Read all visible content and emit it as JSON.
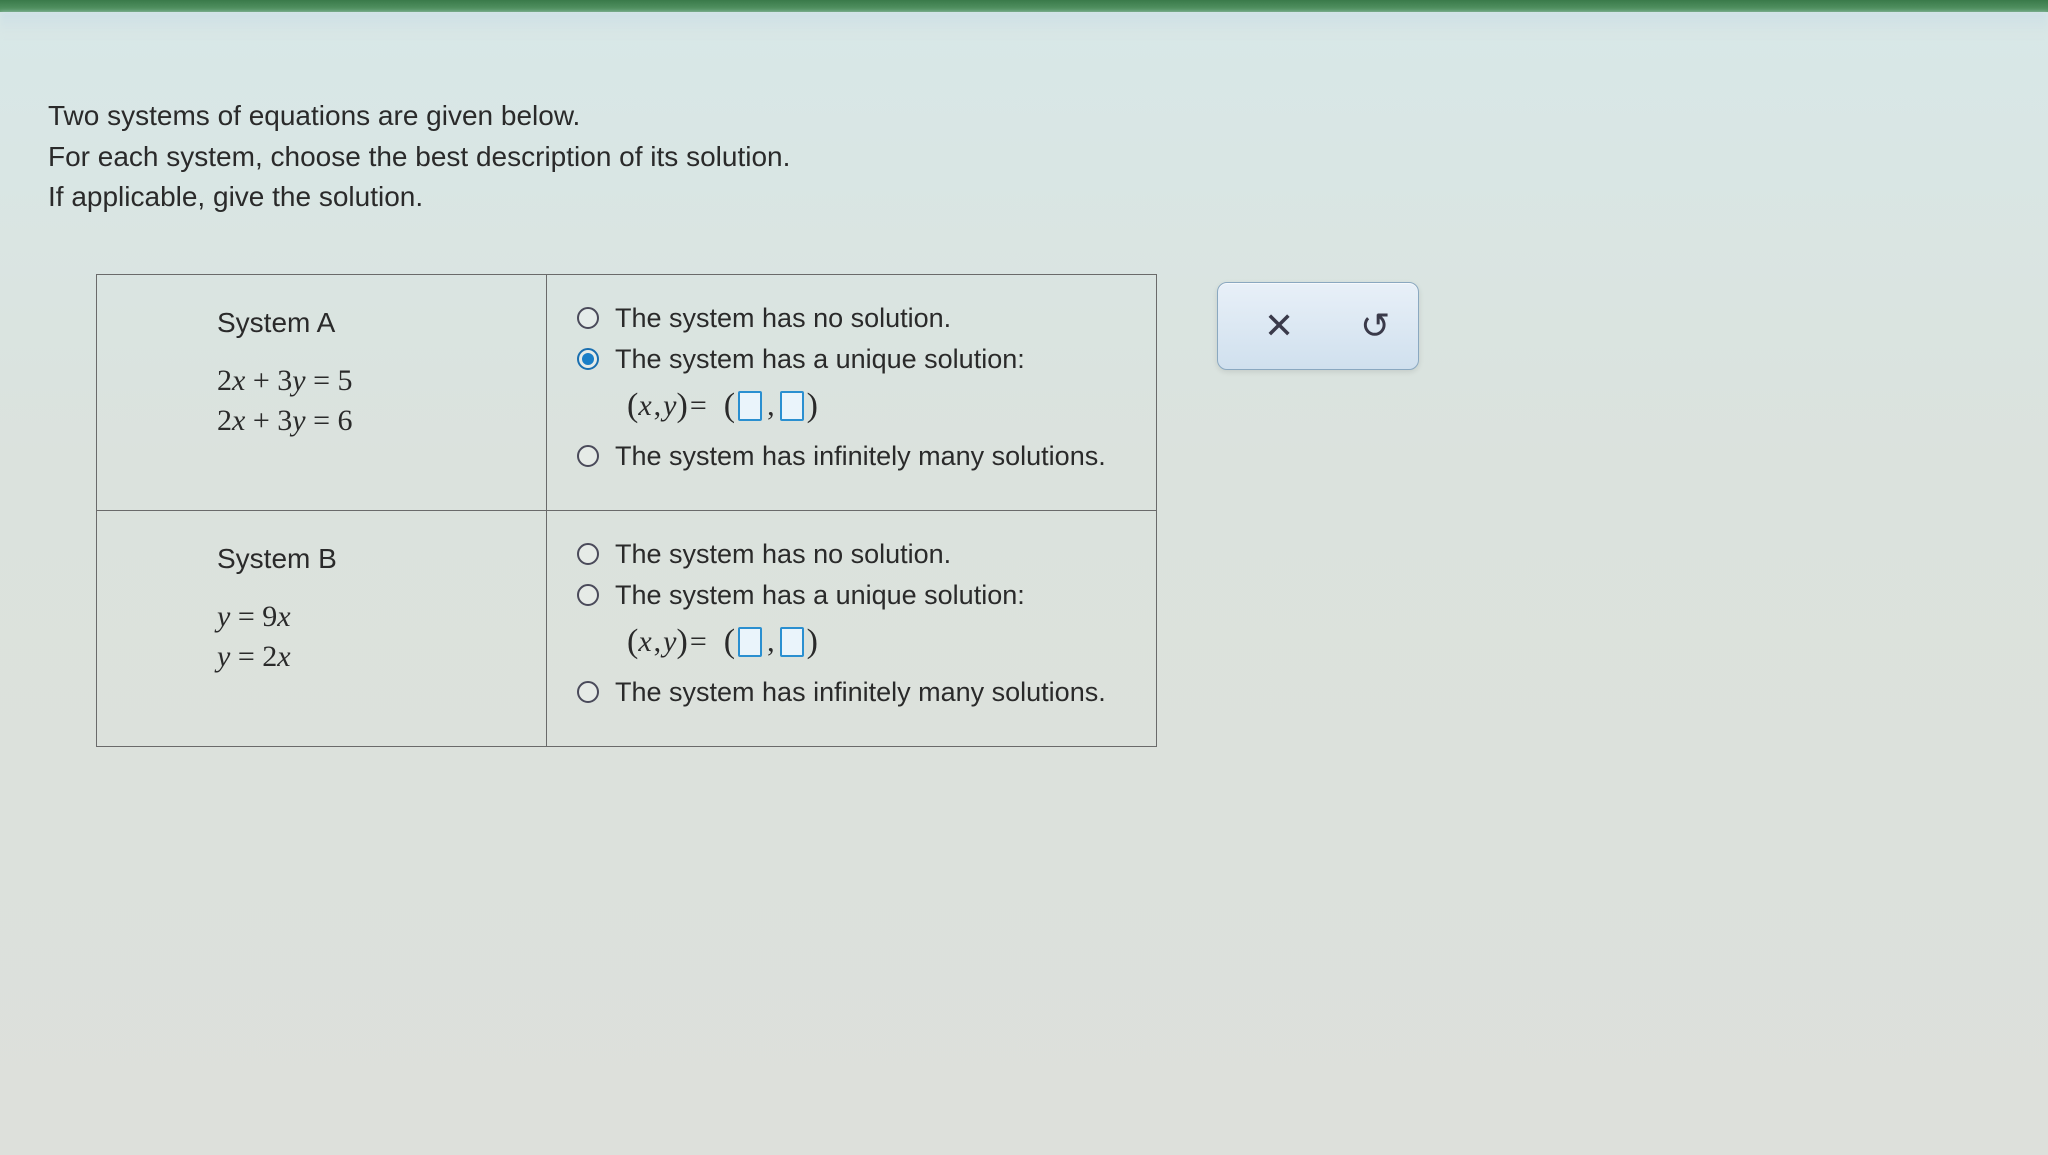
{
  "instructions": {
    "line1": "Two systems of equations are given below.",
    "line2": "For each system, choose the best description of its solution.",
    "line3": "If applicable, give the solution."
  },
  "systems": [
    {
      "title": "System A",
      "eq1": "2x + 3y = 5",
      "eq2": "2x + 3y = 6",
      "options": {
        "no_solution": "The system has no solution.",
        "unique": "The system has a unique solution:",
        "infinite": "The system has infinitely many solutions."
      },
      "selected": "unique",
      "xy_label": "(x , y) ="
    },
    {
      "title": "System B",
      "eq1": "y = 9x",
      "eq2": "y = 2x",
      "options": {
        "no_solution": "The system has no solution.",
        "unique": "The system has a unique solution:",
        "infinite": "The system has infinitely many solutions."
      },
      "selected": null,
      "xy_label": "(x , y) ="
    }
  ],
  "toolbar": {
    "close_glyph": "✕",
    "undo_glyph": "↺"
  },
  "colors": {
    "border": "#6a6a6a",
    "text": "#2a2a2a",
    "radio_checked": "#1a7fc8",
    "input_border": "#2a8fd0",
    "input_bg": "#eaf4fb",
    "toolbar_bg_top": "#e8f0f8",
    "toolbar_bg_bottom": "#d0e0ee",
    "toolbar_border": "#8aa8c0"
  }
}
